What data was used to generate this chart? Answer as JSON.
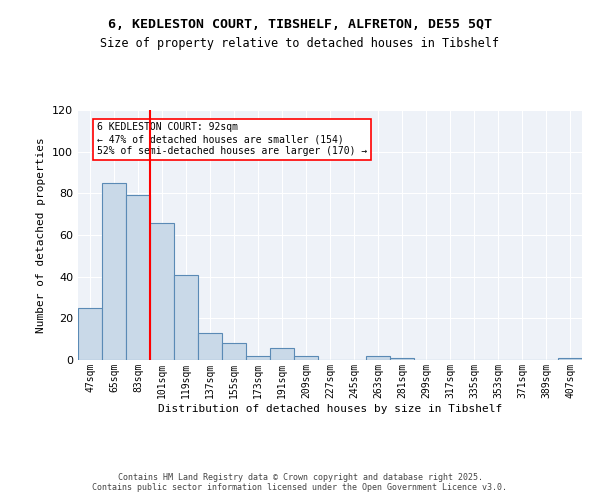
{
  "title_line1": "6, KEDLESTON COURT, TIBSHELF, ALFRETON, DE55 5QT",
  "title_line2": "Size of property relative to detached houses in Tibshelf",
  "xlabel": "Distribution of detached houses by size in Tibshelf",
  "ylabel": "Number of detached properties",
  "categories": [
    "47sqm",
    "65sqm",
    "83sqm",
    "101sqm",
    "119sqm",
    "137sqm",
    "155sqm",
    "173sqm",
    "191sqm",
    "209sqm",
    "227sqm",
    "245sqm",
    "263sqm",
    "281sqm",
    "299sqm",
    "317sqm",
    "335sqm",
    "353sqm",
    "371sqm",
    "389sqm",
    "407sqm"
  ],
  "values": [
    25,
    85,
    79,
    66,
    41,
    13,
    8,
    2,
    6,
    2,
    0,
    0,
    2,
    1,
    0,
    0,
    0,
    0,
    0,
    0,
    1
  ],
  "bar_color": "#c9d9e8",
  "bar_edge_color": "#5a8ab5",
  "bar_edge_width": 0.8,
  "ref_line_bin_index": 2.5,
  "ref_line_color": "red",
  "annotation_text": "6 KEDLESTON COURT: 92sqm\n← 47% of detached houses are smaller (154)\n52% of semi-detached houses are larger (170) →",
  "annotation_box_color": "white",
  "annotation_box_edge": "red",
  "ylim": [
    0,
    120
  ],
  "yticks": [
    0,
    20,
    40,
    60,
    80,
    100,
    120
  ],
  "bg_color": "#eef2f8",
  "footer_line1": "Contains HM Land Registry data © Crown copyright and database right 2025.",
  "footer_line2": "Contains public sector information licensed under the Open Government Licence v3.0."
}
